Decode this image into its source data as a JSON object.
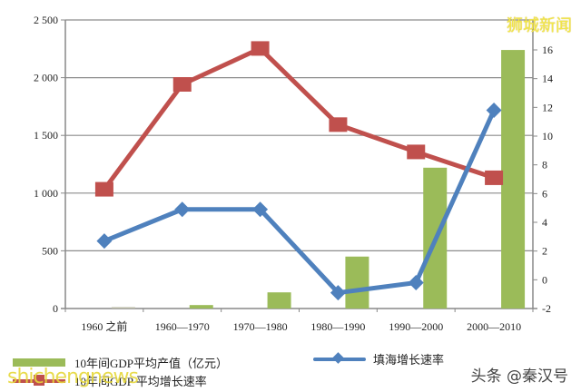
{
  "chart_data": {
    "type": "bar+line",
    "title": "",
    "categories": [
      "1960 之前",
      "1960—1970",
      "1970—1980",
      "1980—1990",
      "1990—2000",
      "2000—2010"
    ],
    "series": [
      {
        "name": "10年间GDP平均产值（亿元）",
        "type": "bar",
        "axis": "left",
        "color": "#9bbb59",
        "values": [
          5,
          30,
          140,
          450,
          1220,
          2240
        ]
      },
      {
        "name": "10年间GDP平均增长速率",
        "type": "line",
        "axis": "right",
        "marker": "square",
        "color": "#c0504d",
        "values": [
          6.3,
          13.6,
          16.1,
          10.8,
          8.9,
          7.1
        ]
      },
      {
        "name": "填海增长速率",
        "type": "line",
        "axis": "right",
        "marker": "diamond",
        "color": "#4f81bd",
        "values": [
          2.7,
          4.9,
          4.9,
          -0.9,
          -0.2,
          11.8
        ]
      }
    ],
    "y_left": {
      "ticks": [
        "0",
        "500",
        "1 000",
        "1 500",
        "2 000",
        "2 500"
      ],
      "min": 0,
      "max": 2500
    },
    "y_right": {
      "ticks": [
        "-2",
        "0",
        "2",
        "4",
        "6",
        "8",
        "10",
        "12",
        "14",
        "16"
      ],
      "min": -2,
      "max": 16
    },
    "grid": true,
    "legend_position": "bottom"
  },
  "legend": {
    "bar": "10年间GDP平均产值（亿元）",
    "blue": "填海增长速率",
    "red": "10年间GDP 平均增长速率"
  },
  "watermarks": {
    "top_right": "狮城新闻",
    "bottom_left": "shichengnews",
    "bottom_right": "头条 @秦汉号"
  }
}
